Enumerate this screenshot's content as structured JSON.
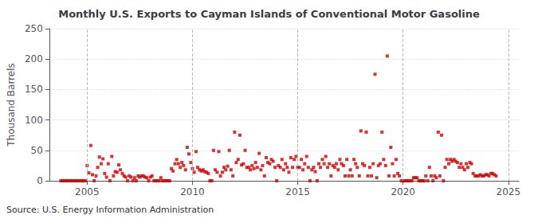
{
  "chart_data": {
    "type": "scatter",
    "title": "Monthly U.S. Exports to Cayman Islands of Conventional Motor Gasoline",
    "ylabel": "Thousand Barrels",
    "annotation": "Source: U.S. Energy Information Administration",
    "color": "#cc0000",
    "marker": "square",
    "grid": true,
    "xlim": [
      2003.2,
      2025.5
    ],
    "xticks": [
      2005,
      2010,
      2015,
      2020,
      2025
    ],
    "ylim": [
      0,
      250
    ],
    "yticks": [
      0,
      50,
      100,
      150,
      200,
      250
    ],
    "x": [
      2003.75,
      2003.83,
      2003.92,
      2004.0,
      2004.08,
      2004.17,
      2004.25,
      2004.33,
      2004.42,
      2004.5,
      2004.58,
      2004.67,
      2004.75,
      2004.83,
      2004.92,
      2005.0,
      2005.08,
      2005.17,
      2005.25,
      2005.33,
      2005.42,
      2005.5,
      2005.58,
      2005.67,
      2005.75,
      2005.83,
      2005.92,
      2006.0,
      2006.08,
      2006.17,
      2006.25,
      2006.33,
      2006.42,
      2006.5,
      2006.58,
      2006.67,
      2006.75,
      2006.83,
      2006.92,
      2007.0,
      2007.08,
      2007.17,
      2007.25,
      2007.33,
      2007.42,
      2007.5,
      2007.58,
      2007.67,
      2007.75,
      2007.83,
      2007.92,
      2008.0,
      2008.08,
      2008.17,
      2008.25,
      2008.33,
      2008.42,
      2008.5,
      2008.58,
      2008.67,
      2008.75,
      2008.83,
      2008.92,
      2009.0,
      2009.08,
      2009.17,
      2009.25,
      2009.33,
      2009.42,
      2009.5,
      2009.58,
      2009.67,
      2009.75,
      2009.83,
      2009.92,
      2010.0,
      2010.08,
      2010.17,
      2010.25,
      2010.33,
      2010.42,
      2010.5,
      2010.58,
      2010.67,
      2010.75,
      2010.83,
      2010.92,
      2011.0,
      2011.08,
      2011.17,
      2011.25,
      2011.33,
      2011.42,
      2011.5,
      2011.58,
      2011.67,
      2011.75,
      2011.83,
      2011.92,
      2012.0,
      2012.08,
      2012.17,
      2012.25,
      2012.33,
      2012.42,
      2012.5,
      2012.58,
      2012.67,
      2012.75,
      2012.83,
      2012.92,
      2013.0,
      2013.08,
      2013.17,
      2013.25,
      2013.33,
      2013.42,
      2013.5,
      2013.58,
      2013.67,
      2013.75,
      2013.83,
      2013.92,
      2014.0,
      2014.08,
      2014.17,
      2014.25,
      2014.33,
      2014.42,
      2014.5,
      2014.58,
      2014.67,
      2014.75,
      2014.83,
      2014.92,
      2015.0,
      2015.08,
      2015.17,
      2015.25,
      2015.33,
      2015.42,
      2015.5,
      2015.58,
      2015.67,
      2015.75,
      2015.83,
      2015.92,
      2016.0,
      2016.08,
      2016.17,
      2016.25,
      2016.33,
      2016.42,
      2016.5,
      2016.58,
      2016.67,
      2016.75,
      2016.83,
      2016.92,
      2017.0,
      2017.08,
      2017.17,
      2017.25,
      2017.33,
      2017.42,
      2017.5,
      2017.58,
      2017.67,
      2017.75,
      2017.83,
      2017.92,
      2018.0,
      2018.08,
      2018.17,
      2018.25,
      2018.33,
      2018.42,
      2018.5,
      2018.58,
      2018.67,
      2018.75,
      2018.83,
      2018.92,
      2019.0,
      2019.08,
      2019.17,
      2019.25,
      2019.33,
      2019.42,
      2019.5,
      2019.58,
      2019.67,
      2019.75,
      2019.83,
      2019.92,
      2020.0,
      2020.08,
      2020.17,
      2020.25,
      2020.33,
      2020.42,
      2020.5,
      2020.58,
      2020.67,
      2020.75,
      2020.83,
      2020.92,
      2021.0,
      2021.08,
      2021.17,
      2021.25,
      2021.33,
      2021.42,
      2021.5,
      2021.58,
      2021.67,
      2021.75,
      2021.83,
      2021.92,
      2022.0,
      2022.08,
      2022.17,
      2022.25,
      2022.33,
      2022.42,
      2022.5,
      2022.58,
      2022.67,
      2022.75,
      2022.83,
      2022.92,
      2023.0,
      2023.08,
      2023.17,
      2023.25,
      2023.33,
      2023.42,
      2023.5,
      2023.58,
      2023.67,
      2023.75,
      2023.83,
      2023.92,
      2024.0,
      2024.08,
      2024.17,
      2024.25,
      2024.33,
      2024.42
    ],
    "values": [
      0,
      0,
      0,
      0,
      0,
      0,
      0,
      0,
      0,
      0,
      0,
      0,
      0,
      0,
      0,
      25,
      13,
      58,
      10,
      0,
      8,
      22,
      39,
      28,
      36,
      12,
      6,
      28,
      0,
      40,
      8,
      15,
      14,
      26,
      18,
      12,
      8,
      6,
      0,
      8,
      6,
      0,
      5,
      0,
      8,
      6,
      8,
      8,
      6,
      5,
      0,
      6,
      8,
      0,
      0,
      0,
      0,
      5,
      0,
      0,
      0,
      0,
      0,
      20,
      16,
      28,
      35,
      28,
      22,
      30,
      25,
      18,
      55,
      44,
      30,
      20,
      14,
      48,
      22,
      18,
      16,
      18,
      15,
      14,
      12,
      0,
      0,
      50,
      18,
      14,
      48,
      8,
      14,
      22,
      18,
      24,
      50,
      18,
      8,
      80,
      30,
      35,
      75,
      26,
      28,
      50,
      22,
      22,
      18,
      25,
      20,
      30,
      22,
      45,
      18,
      25,
      8,
      38,
      30,
      28,
      35,
      32,
      22,
      0,
      25,
      22,
      35,
      18,
      28,
      22,
      14,
      38,
      22,
      35,
      40,
      22,
      22,
      35,
      18,
      28,
      40,
      22,
      0,
      18,
      22,
      15,
      0,
      28,
      22,
      35,
      28,
      40,
      22,
      28,
      8,
      25,
      22,
      28,
      18,
      35,
      28,
      25,
      8,
      35,
      8,
      18,
      8,
      35,
      28,
      22,
      8,
      82,
      28,
      25,
      80,
      8,
      22,
      8,
      28,
      175,
      5,
      25,
      28,
      80,
      35,
      25,
      205,
      8,
      55,
      28,
      8,
      35,
      12,
      8,
      0,
      0,
      0,
      0,
      0,
      0,
      0,
      5,
      5,
      5,
      0,
      0,
      0,
      0,
      8,
      0,
      22,
      8,
      0,
      8,
      5,
      80,
      8,
      75,
      0,
      22,
      35,
      28,
      35,
      32,
      35,
      32,
      30,
      22,
      28,
      22,
      18,
      28,
      22,
      30,
      28,
      12,
      8,
      8,
      8,
      10,
      8,
      8,
      10,
      10,
      8,
      12,
      12,
      10,
      8
    ]
  }
}
